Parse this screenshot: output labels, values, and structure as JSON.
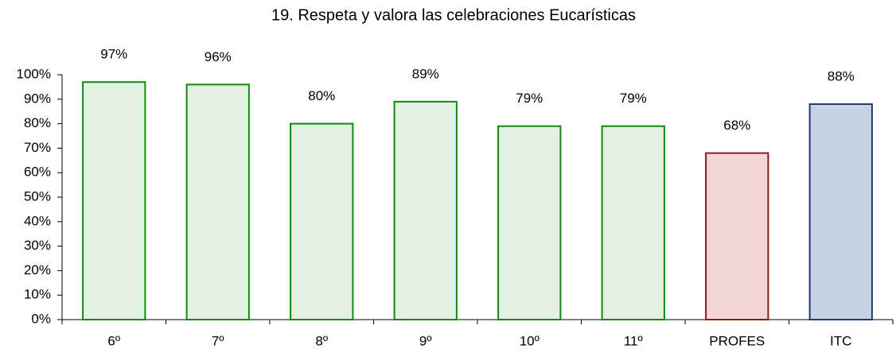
{
  "chart_data": {
    "type": "bar",
    "title": "19. Respeta y valora las celebraciones Eucarísticas",
    "categories": [
      "6º",
      "7º",
      "8º",
      "9º",
      "10º",
      "11º",
      "PROFES",
      "ITC"
    ],
    "values": [
      97,
      96,
      80,
      89,
      79,
      79,
      68,
      88
    ],
    "value_labels": [
      "97%",
      "96%",
      "80%",
      "89%",
      "79%",
      "79%",
      "68%",
      "88%"
    ],
    "colors": [
      "#108a10",
      "#108a10",
      "#108a10",
      "#108a10",
      "#108a10",
      "#108a10",
      "#8b1a1a",
      "#1f3a78"
    ],
    "fills": [
      "#e3f1e3",
      "#e3f1e3",
      "#e3f1e3",
      "#e3f1e3",
      "#e3f1e3",
      "#e3f1e3",
      "#f3d6d6",
      "#c9d3e6"
    ],
    "ylim": [
      0,
      100
    ],
    "yticks": [
      {
        "value": 0,
        "label": "0%"
      },
      {
        "value": 10,
        "label": "10%"
      },
      {
        "value": 20,
        "label": "20%"
      },
      {
        "value": 30,
        "label": "30%"
      },
      {
        "value": 40,
        "label": "40%"
      },
      {
        "value": 50,
        "label": "50%"
      },
      {
        "value": 60,
        "label": "60%"
      },
      {
        "value": 70,
        "label": "70%"
      },
      {
        "value": 80,
        "label": "80%"
      },
      {
        "value": 90,
        "label": "90%"
      },
      {
        "value": 100,
        "label": "100%"
      }
    ],
    "grid": false
  }
}
